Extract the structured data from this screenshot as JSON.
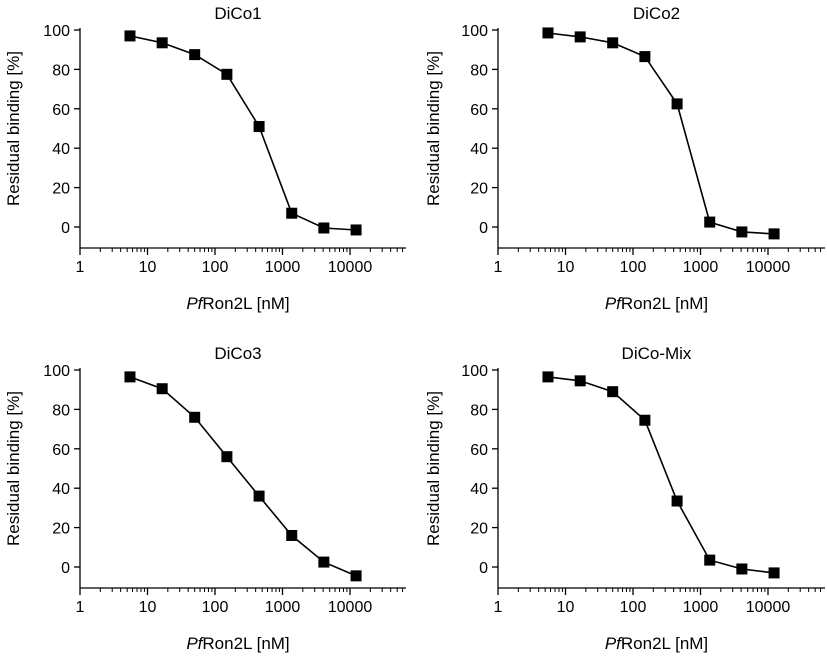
{
  "chart_data": [
    {
      "type": "line",
      "title": "DiCo1",
      "x_scale": "log",
      "xlim": [
        1,
        70000
      ],
      "ylim": [
        -8,
        100
      ],
      "xticks": [
        1,
        10,
        100,
        1000,
        10000
      ],
      "xtick_labels": [
        "1",
        "10",
        "100",
        "1000",
        "10000"
      ],
      "yticks": [
        0,
        20,
        40,
        60,
        80,
        100
      ],
      "ytick_labels": [
        "0",
        "20",
        "40",
        "60",
        "80",
        "100"
      ],
      "xlabel_italic": "Pf",
      "xlabel_rest": "Ron2L [nM]",
      "ylabel": "Residual binding [%]",
      "marker": "square",
      "x": [
        5.5,
        16.5,
        50,
        150,
        450,
        1370,
        4100,
        12300
      ],
      "y": [
        97,
        93.5,
        87.5,
        77.5,
        51,
        7,
        -0.5,
        -1.5
      ]
    },
    {
      "type": "line",
      "title": "DiCo2",
      "x_scale": "log",
      "xlim": [
        1,
        70000
      ],
      "ylim": [
        -8,
        100
      ],
      "xticks": [
        1,
        10,
        100,
        1000,
        10000
      ],
      "xtick_labels": [
        "1",
        "10",
        "100",
        "1000",
        "10000"
      ],
      "yticks": [
        0,
        20,
        40,
        60,
        80,
        100
      ],
      "ytick_labels": [
        "0",
        "20",
        "40",
        "60",
        "80",
        "100"
      ],
      "xlabel_italic": "Pf",
      "xlabel_rest": "Ron2L [nM]",
      "ylabel": "Residual binding [%]",
      "marker": "square",
      "x": [
        5.5,
        16.5,
        50,
        150,
        450,
        1370,
        4100,
        12300
      ],
      "y": [
        98.5,
        96.5,
        93.5,
        86.5,
        62.5,
        2.5,
        -2.5,
        -3.5
      ]
    },
    {
      "type": "line",
      "title": "DiCo3",
      "x_scale": "log",
      "xlim": [
        1,
        70000
      ],
      "ylim": [
        -8,
        100
      ],
      "xticks": [
        1,
        10,
        100,
        1000,
        10000
      ],
      "xtick_labels": [
        "1",
        "10",
        "100",
        "1000",
        "10000"
      ],
      "yticks": [
        0,
        20,
        40,
        60,
        80,
        100
      ],
      "ytick_labels": [
        "0",
        "20",
        "40",
        "60",
        "80",
        "100"
      ],
      "xlabel_italic": "Pf",
      "xlabel_rest": "Ron2L [nM]",
      "ylabel": "Residual binding [%]",
      "marker": "square",
      "x": [
        5.5,
        16.5,
        50,
        150,
        450,
        1370,
        4100,
        12300
      ],
      "y": [
        96.5,
        90.5,
        76,
        56,
        36,
        16,
        2.5,
        -4.5
      ]
    },
    {
      "type": "line",
      "title": "DiCo-Mix",
      "x_scale": "log",
      "xlim": [
        1,
        70000
      ],
      "ylim": [
        -8,
        100
      ],
      "xticks": [
        1,
        10,
        100,
        1000,
        10000
      ],
      "xtick_labels": [
        "1",
        "10",
        "100",
        "1000",
        "10000"
      ],
      "yticks": [
        0,
        20,
        40,
        60,
        80,
        100
      ],
      "ytick_labels": [
        "0",
        "20",
        "40",
        "60",
        "80",
        "100"
      ],
      "xlabel_italic": "Pf",
      "xlabel_rest": "Ron2L [nM]",
      "ylabel": "Residual binding [%]",
      "marker": "square",
      "x": [
        5.5,
        16.5,
        50,
        150,
        450,
        1370,
        4100,
        12300
      ],
      "y": [
        96.5,
        94.5,
        89,
        74.5,
        33.5,
        3.5,
        -1,
        -3
      ]
    }
  ]
}
